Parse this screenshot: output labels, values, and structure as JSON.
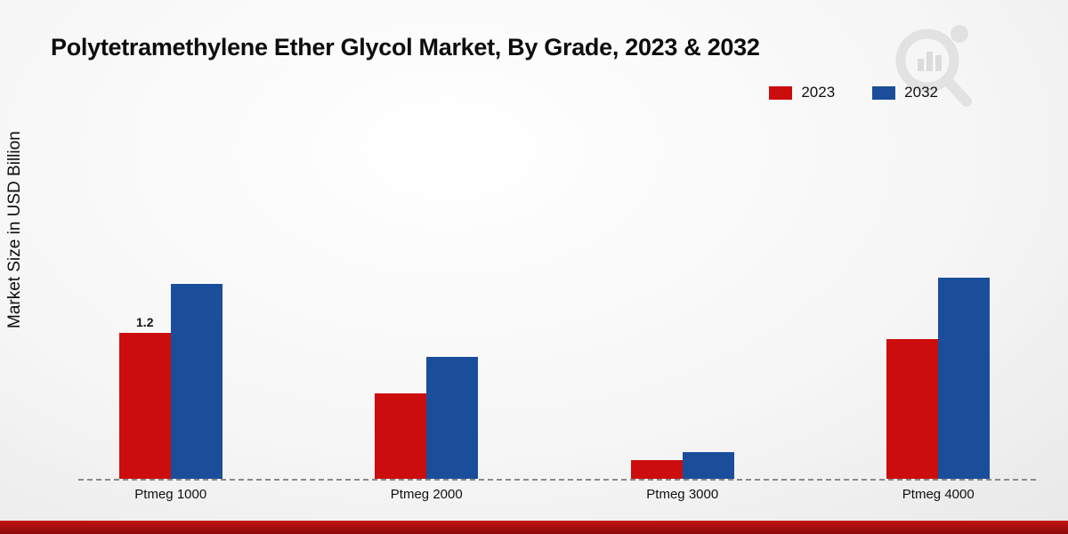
{
  "title": "Polytetramethylene Ether Glycol Market, By Grade, 2023 & 2032",
  "ylabel": "Market Size in USD Billion",
  "legend": [
    {
      "label": "2023",
      "color": "#cc0d0d"
    },
    {
      "label": "2032",
      "color": "#1b4e9a"
    }
  ],
  "chart_data": {
    "type": "bar",
    "title": "Polytetramethylene Ether Glycol Market, By Grade, 2023 & 2032",
    "xlabel": "",
    "ylabel": "Market Size in USD Billion",
    "categories": [
      "Ptmeg 1000",
      "Ptmeg 2000",
      "Ptmeg 3000",
      "Ptmeg 4000"
    ],
    "series": [
      {
        "name": "2023",
        "color": "#cc0d0d",
        "values": [
          1.2,
          0.7,
          0.15,
          1.15
        ],
        "labels": [
          "1.2",
          "",
          "",
          ""
        ]
      },
      {
        "name": "2032",
        "color": "#1b4e9a",
        "values": [
          1.6,
          1.0,
          0.22,
          1.65
        ],
        "labels": [
          "",
          "",
          "",
          ""
        ]
      }
    ],
    "ylim": [
      0,
      3.2
    ],
    "grid": false,
    "axis_line": "dashed-baseline",
    "legend_position": "top-right"
  },
  "branding": {
    "watermark_icon": "magnifier-logo",
    "footer_bar_color": "#a30e0e"
  }
}
